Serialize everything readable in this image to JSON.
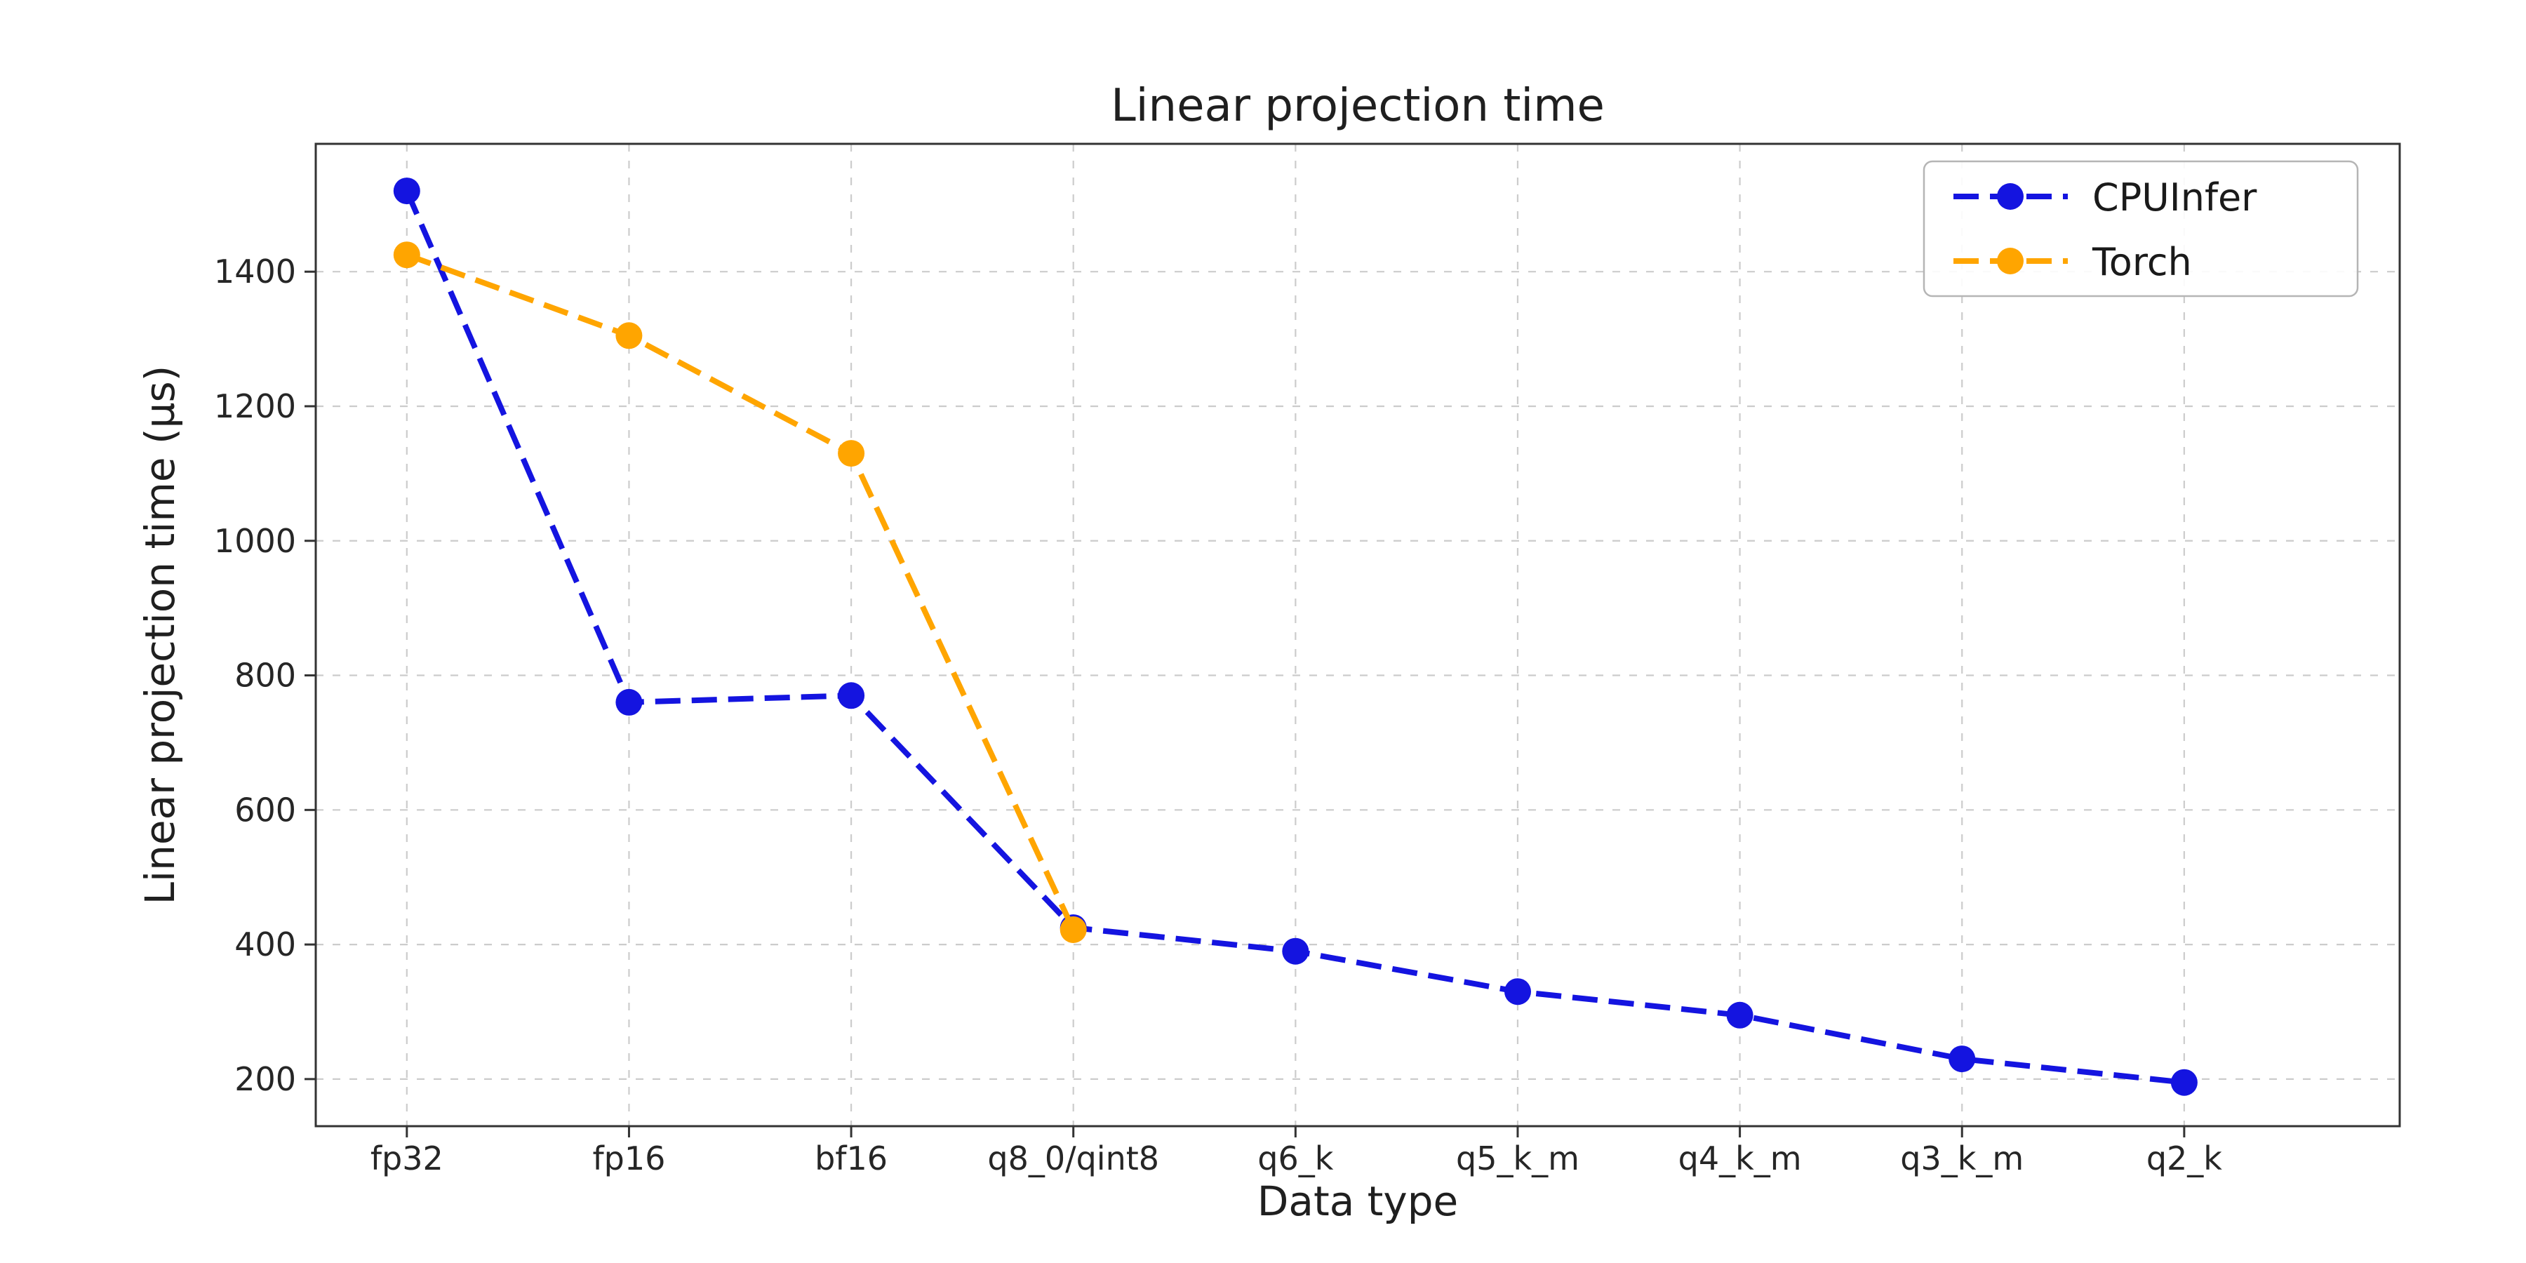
{
  "figure": {
    "title": "Linear projection time",
    "xlabel": "Data type",
    "ylabel": "Linear projection time (µs)"
  },
  "chart_data": {
    "type": "line",
    "title": "Linear projection time",
    "xlabel": "Data type",
    "ylabel": "Linear projection time (µs)",
    "categories": [
      "fp32",
      "fp16",
      "bf16",
      "q8_0/qint8",
      "q6_k",
      "q5_k_m",
      "q4_k_m",
      "q3_k_m",
      "q2_k"
    ],
    "series": [
      {
        "name": "CPUInfer",
        "color": "#1414e0",
        "values": [
          1520,
          760,
          770,
          425,
          390,
          330,
          295,
          230,
          195
        ]
      },
      {
        "name": "Torch",
        "color": "#ffa500",
        "values": [
          1425,
          1305,
          1130,
          422,
          null,
          null,
          null,
          null,
          null
        ]
      }
    ],
    "ylim": [
      130,
      1590
    ],
    "yticks": [
      200,
      400,
      600,
      800,
      1000,
      1200,
      1400
    ],
    "grid": true,
    "line_style": "dashed",
    "marker": "circle",
    "legend_position": "upper right"
  }
}
